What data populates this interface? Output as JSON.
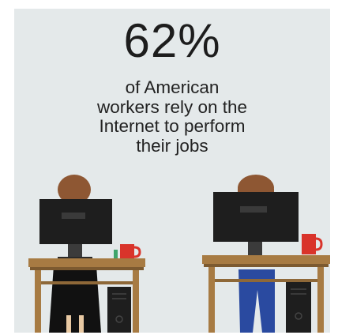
{
  "infographic": {
    "headline_stat": "62%",
    "caption_lines": [
      "of American",
      "workers rely on the",
      "Internet to perform",
      "their jobs"
    ]
  },
  "colors": {
    "background": "#e4e9ea",
    "desk_wood": "#a77b43",
    "monitor": "#1e1e1e",
    "mug": "#d9342b",
    "hair": "#8e5733",
    "jeans": "#2a4aa0"
  },
  "icons": [
    "woman-at-desk-icon",
    "man-at-desk-icon",
    "computer-tower-icon",
    "coffee-mug-icon"
  ]
}
